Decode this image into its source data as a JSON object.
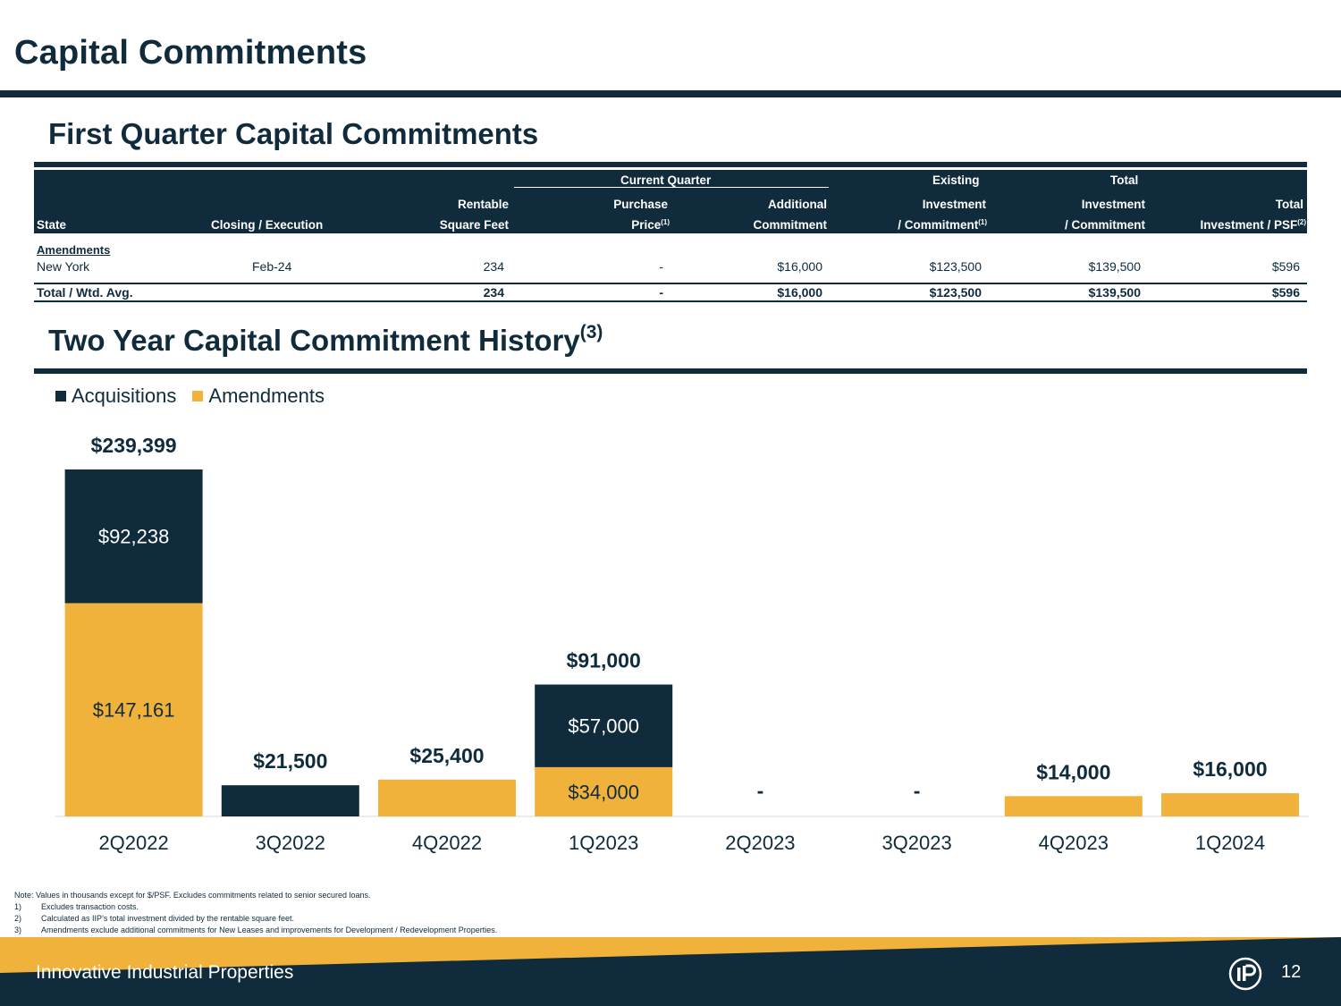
{
  "page": {
    "title": "Capital Commitments",
    "section1_title": "First Quarter Capital Commitments",
    "section2_title": "Two Year Capital Commitment History",
    "section2_sup": "(3)"
  },
  "colors": {
    "navy": "#0f2b3c",
    "gold": "#f0b23a",
    "white": "#ffffff"
  },
  "table": {
    "header_groups": {
      "current_quarter": "Current Quarter",
      "existing": "Existing",
      "total": "Total"
    },
    "columns": {
      "state": "State",
      "closing": "Closing / Execution",
      "rsf_line1": "Rentable",
      "rsf_line2": "Square Feet",
      "purchase_line1": "Purchase",
      "purchase_line2": "Price",
      "purchase_sup": "(1)",
      "additional_line1": "Additional",
      "additional_line2": "Commitment",
      "existing_line2": "Investment",
      "existing_line3": "/ Commitment",
      "existing_sup": "(1)",
      "total_line2": "Investment",
      "total_line3": "/ Commitment",
      "psf_line1": "Total",
      "psf_line2": "Investment / PSF",
      "psf_sup": "(2)"
    },
    "section_label": "Amendments",
    "rows": [
      {
        "state": "New York",
        "closing": "Feb-24",
        "rsf": "234",
        "purchase": "-",
        "additional": "$16,000",
        "existing": "$123,500",
        "total": "$139,500",
        "psf": "$596"
      }
    ],
    "total_row": {
      "label": "Total / Wtd. Avg.",
      "rsf": "234",
      "purchase": "-",
      "additional": "$16,000",
      "existing": "$123,500",
      "total": "$139,500",
      "psf": "$596"
    }
  },
  "chart_data": {
    "type": "bar",
    "stacked": true,
    "categories": [
      "2Q2022",
      "3Q2022",
      "4Q2022",
      "1Q2023",
      "2Q2023",
      "3Q2023",
      "4Q2023",
      "1Q2024"
    ],
    "series": [
      {
        "name": "Amendments",
        "color": "#f0b23a",
        "values": [
          147161,
          0,
          25400,
          34000,
          0,
          0,
          14000,
          16000
        ]
      },
      {
        "name": "Acquisitions",
        "color": "#0f2b3c",
        "values": [
          92238,
          21500,
          0,
          57000,
          0,
          0,
          0,
          0
        ]
      }
    ],
    "segment_labels": {
      "Acquisitions": [
        "$92,238",
        "",
        "",
        "$57,000",
        "",
        "",
        "",
        ""
      ],
      "Amendments": [
        "$147,161",
        "",
        "",
        "$34,000",
        "",
        "",
        "",
        ""
      ]
    },
    "totals": [
      239399,
      21500,
      25400,
      91000,
      0,
      0,
      14000,
      16000
    ],
    "total_labels": [
      "$239,399",
      "$21,500",
      "$25,400",
      "$91,000",
      "-",
      "-",
      "$14,000",
      "$16,000"
    ],
    "legend": [
      "Acquisitions",
      "Amendments"
    ],
    "legend_position": "top-left",
    "ylim": [
      0,
      239399
    ],
    "xlabel": "",
    "ylabel": ""
  },
  "notes": {
    "main": "Note: Values in thousands except for $/PSF. Excludes commitments related to senior secured loans.",
    "items": [
      {
        "num": "1)",
        "text": "Excludes transaction costs."
      },
      {
        "num": "2)",
        "text": "Calculated as IIP’s total investment divided by the rentable square feet."
      },
      {
        "num": "3)",
        "text": "Amendments exclude additional commitments for New Leases and improvements for Development / Redevelopment Properties."
      }
    ]
  },
  "footer": {
    "company": "Innovative Industrial Properties",
    "page_number": "12",
    "logo_text": "iP"
  }
}
